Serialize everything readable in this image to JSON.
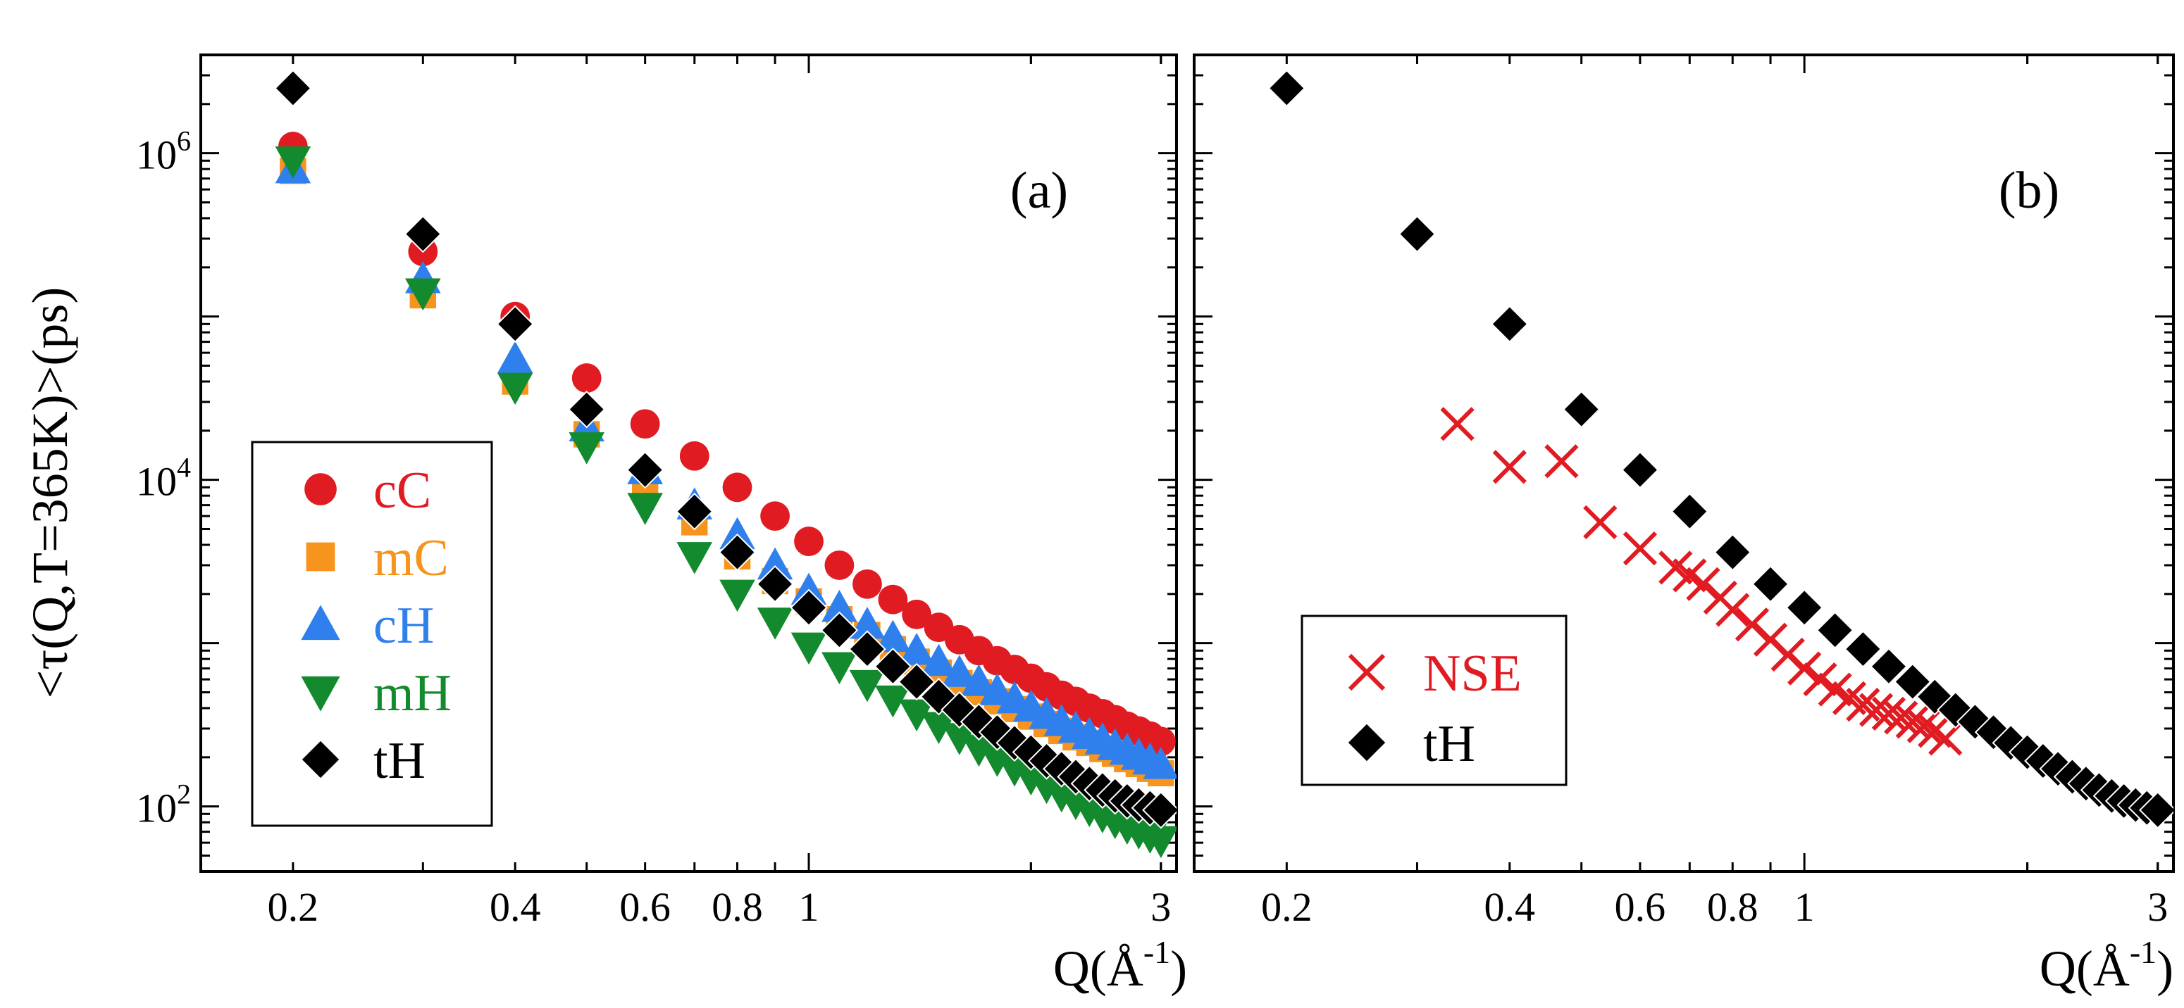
{
  "chart_data": [
    {
      "type": "scatter",
      "panel_label": "(a)",
      "xlabel": "Q(Å",
      "xlabel_sup": "-1",
      "xlabel_close": ")",
      "ylabel": "<τ(Q,T=365K)>(ps)",
      "xscale": "log",
      "yscale": "log",
      "xlim": [
        0.15,
        3.15
      ],
      "ylim": [
        40,
        4000000
      ],
      "xticks": [
        {
          "v": 0.2,
          "label": "0.2"
        },
        {
          "v": 0.4,
          "label": "0.4"
        },
        {
          "v": 0.6,
          "label": "0.6"
        },
        {
          "v": 0.8,
          "label": "0.8"
        },
        {
          "v": 1,
          "label": "1"
        },
        {
          "v": 3,
          "label": "3"
        }
      ],
      "yticks": [
        {
          "v": 100,
          "base": "10",
          "exp": "2"
        },
        {
          "v": 10000,
          "base": "10",
          "exp": "4"
        },
        {
          "v": 1000000,
          "base": "10",
          "exp": "6"
        }
      ],
      "legend_position": "lower-left",
      "series": [
        {
          "name": "cC",
          "marker": "circle",
          "color": "#e11b22",
          "x": [
            0.2,
            0.3,
            0.4,
            0.5,
            0.6,
            0.7,
            0.8,
            0.9,
            1.0,
            1.1,
            1.2,
            1.3,
            1.4,
            1.5,
            1.6,
            1.7,
            1.8,
            1.9,
            2.0,
            2.1,
            2.2,
            2.3,
            2.4,
            2.5,
            2.6,
            2.7,
            2.8,
            2.9,
            3.0
          ],
          "y": [
            1100000,
            250000,
            100000,
            42000,
            22000,
            14000,
            9000,
            6000,
            4200,
            3000,
            2300,
            1850,
            1500,
            1250,
            1050,
            900,
            780,
            690,
            610,
            540,
            480,
            440,
            400,
            370,
            340,
            310,
            290,
            270,
            250
          ]
        },
        {
          "name": "mC",
          "marker": "square",
          "color": "#f7941d",
          "x": [
            0.2,
            0.3,
            0.4,
            0.5,
            0.6,
            0.7,
            0.8,
            0.9,
            1.0,
            1.1,
            1.2,
            1.3,
            1.4,
            1.5,
            1.6,
            1.7,
            1.8,
            1.9,
            2.0,
            2.1,
            2.2,
            2.3,
            2.4,
            2.5,
            2.6,
            2.7,
            2.8,
            2.9,
            3.0
          ],
          "y": [
            780000,
            135000,
            40000,
            19000,
            9800,
            5500,
            3400,
            2400,
            1800,
            1400,
            1120,
            920,
            770,
            660,
            570,
            500,
            440,
            395,
            355,
            320,
            290,
            265,
            245,
            225,
            210,
            195,
            182,
            170,
            160
          ]
        },
        {
          "name": "cH",
          "marker": "triangle-up",
          "color": "#2f80ed",
          "x": [
            0.2,
            0.3,
            0.4,
            0.5,
            0.6,
            0.7,
            0.8,
            0.9,
            1.0,
            1.1,
            1.2,
            1.3,
            1.4,
            1.5,
            1.6,
            1.7,
            1.8,
            1.9,
            2.0,
            2.1,
            2.2,
            2.3,
            2.4,
            2.5,
            2.6,
            2.7,
            2.8,
            2.9,
            3.0
          ],
          "y": [
            800000,
            170000,
            55000,
            21000,
            11500,
            7000,
            4600,
            3000,
            2100,
            1650,
            1300,
            1080,
            900,
            770,
            660,
            580,
            510,
            455,
            405,
            365,
            330,
            300,
            275,
            255,
            235,
            220,
            205,
            192,
            180
          ]
        },
        {
          "name": "mH",
          "marker": "triangle-down",
          "color": "#138a2e",
          "x": [
            0.2,
            0.3,
            0.4,
            0.5,
            0.6,
            0.7,
            0.8,
            0.9,
            1.0,
            1.1,
            1.2,
            1.3,
            1.4,
            1.5,
            1.6,
            1.7,
            1.8,
            1.9,
            2.0,
            2.1,
            2.2,
            2.3,
            2.4,
            2.5,
            2.6,
            2.7,
            2.8,
            2.9,
            3.0
          ],
          "y": [
            900000,
            140000,
            37000,
            16000,
            6800,
            3400,
            2000,
            1350,
            950,
            720,
            560,
            450,
            370,
            310,
            265,
            225,
            195,
            170,
            150,
            133,
            118,
            106,
            96,
            88,
            81,
            75,
            70,
            66,
            62
          ]
        },
        {
          "name": "tH",
          "marker": "diamond",
          "color": "#000000",
          "x": [
            0.2,
            0.3,
            0.4,
            0.5,
            0.6,
            0.7,
            0.8,
            0.9,
            1.0,
            1.1,
            1.2,
            1.3,
            1.4,
            1.5,
            1.6,
            1.7,
            1.8,
            1.9,
            2.0,
            2.1,
            2.2,
            2.3,
            2.4,
            2.5,
            2.6,
            2.7,
            2.8,
            2.9,
            3.0
          ],
          "y": [
            2500000,
            320000,
            90000,
            27000,
            11500,
            6400,
            3600,
            2300,
            1650,
            1200,
            920,
            720,
            580,
            470,
            390,
            330,
            285,
            245,
            215,
            190,
            170,
            152,
            138,
            126,
            116,
            108,
            102,
            98,
            95
          ]
        }
      ]
    },
    {
      "type": "scatter",
      "panel_label": "(b)",
      "xlabel": "Q(Å",
      "xlabel_sup": "-1",
      "xlabel_close": ")",
      "xscale": "log",
      "yscale": "log",
      "xlim": [
        0.15,
        3.15
      ],
      "ylim": [
        40,
        4000000
      ],
      "xticks": [
        {
          "v": 0.2,
          "label": "0.2"
        },
        {
          "v": 0.4,
          "label": "0.4"
        },
        {
          "v": 0.6,
          "label": "0.6"
        },
        {
          "v": 0.8,
          "label": "0.8"
        },
        {
          "v": 1,
          "label": "1"
        },
        {
          "v": 3,
          "label": "3"
        }
      ],
      "legend_position": "lower-left",
      "series": [
        {
          "name": "NSE",
          "marker": "cross",
          "color": "#e11b22",
          "x": [
            0.34,
            0.4,
            0.47,
            0.53,
            0.6,
            0.67,
            0.7,
            0.73,
            0.77,
            0.8,
            0.85,
            0.9,
            0.95,
            1.0,
            1.05,
            1.1,
            1.15,
            1.2,
            1.25,
            1.3,
            1.35,
            1.4,
            1.45,
            1.5,
            1.55
          ],
          "y": [
            22000,
            12000,
            13000,
            5500,
            3800,
            2900,
            2600,
            2300,
            1900,
            1600,
            1300,
            1050,
            850,
            700,
            600,
            520,
            460,
            420,
            390,
            370,
            350,
            330,
            310,
            290,
            260
          ]
        },
        {
          "name": "tH",
          "marker": "diamond",
          "color": "#000000",
          "x": [
            0.2,
            0.3,
            0.4,
            0.5,
            0.6,
            0.7,
            0.8,
            0.9,
            1.0,
            1.1,
            1.2,
            1.3,
            1.4,
            1.5,
            1.6,
            1.7,
            1.8,
            1.9,
            2.0,
            2.1,
            2.2,
            2.3,
            2.4,
            2.5,
            2.6,
            2.7,
            2.8,
            2.9,
            3.0
          ],
          "y": [
            2500000,
            320000,
            90000,
            27000,
            11500,
            6400,
            3600,
            2300,
            1650,
            1200,
            920,
            720,
            580,
            470,
            390,
            330,
            285,
            245,
            215,
            190,
            170,
            152,
            138,
            126,
            116,
            108,
            102,
            98,
            95
          ]
        }
      ]
    }
  ]
}
